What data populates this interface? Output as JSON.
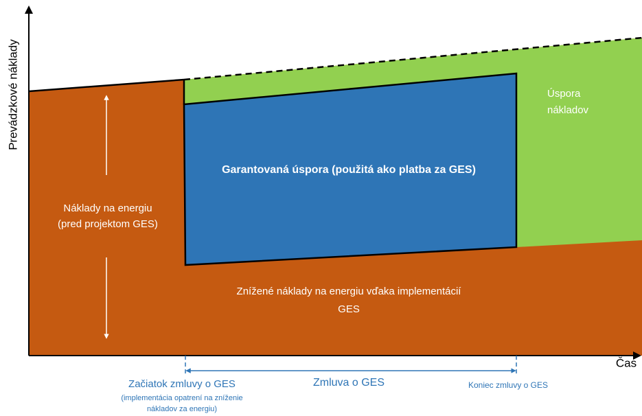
{
  "axes": {
    "y_label": "Prevádzkové náklady",
    "x_label": "Čas"
  },
  "regions": {
    "energy_before": [
      "Náklady na energiu",
      "(pred projektom GES)"
    ],
    "guaranteed_savings": "Garantovaná úspora (použitá ako platba za GES)",
    "cost_savings": [
      "Úspora",
      "nákladov"
    ],
    "reduced_costs": [
      "Znížené náklady na energiu vďaka implementácií",
      "GES"
    ]
  },
  "timeline": {
    "start": "Začiatok zmluvy o GES",
    "start_note": [
      "(implementácia opatrení na zníženie",
      "nákladov za energiu)"
    ],
    "contract": "Zmluva o GES",
    "end": "Koniec zmluvy o GES"
  }
}
